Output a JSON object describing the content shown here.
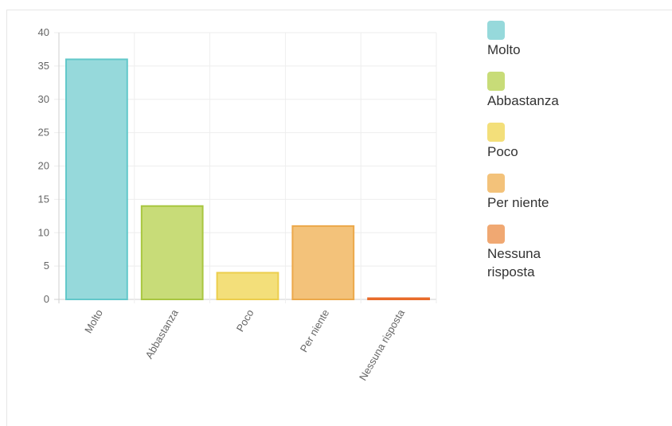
{
  "chart_data": {
    "type": "bar",
    "categories": [
      "Molto",
      "Abbastanza",
      "Poco",
      "Per niente",
      "Nessuna risposta"
    ],
    "values": [
      36,
      14,
      4,
      11,
      0
    ],
    "ylim": [
      0,
      40
    ],
    "yticks": [
      "0",
      "5",
      "10",
      "15",
      "20",
      "25",
      "30",
      "35",
      "40"
    ],
    "grid": true,
    "legend_position": "right",
    "colors": {
      "fill": [
        "#96d9db",
        "#c8dc78",
        "#f3df7a",
        "#f3c27a",
        "#f0a872"
      ],
      "border": [
        "#62c8ca",
        "#a8c640",
        "#ecce4c",
        "#eca84a",
        "#e86b2a"
      ]
    },
    "legend": [
      "Molto",
      "Abbastanza",
      "Poco",
      "Per niente",
      "Nessuna risposta"
    ]
  }
}
